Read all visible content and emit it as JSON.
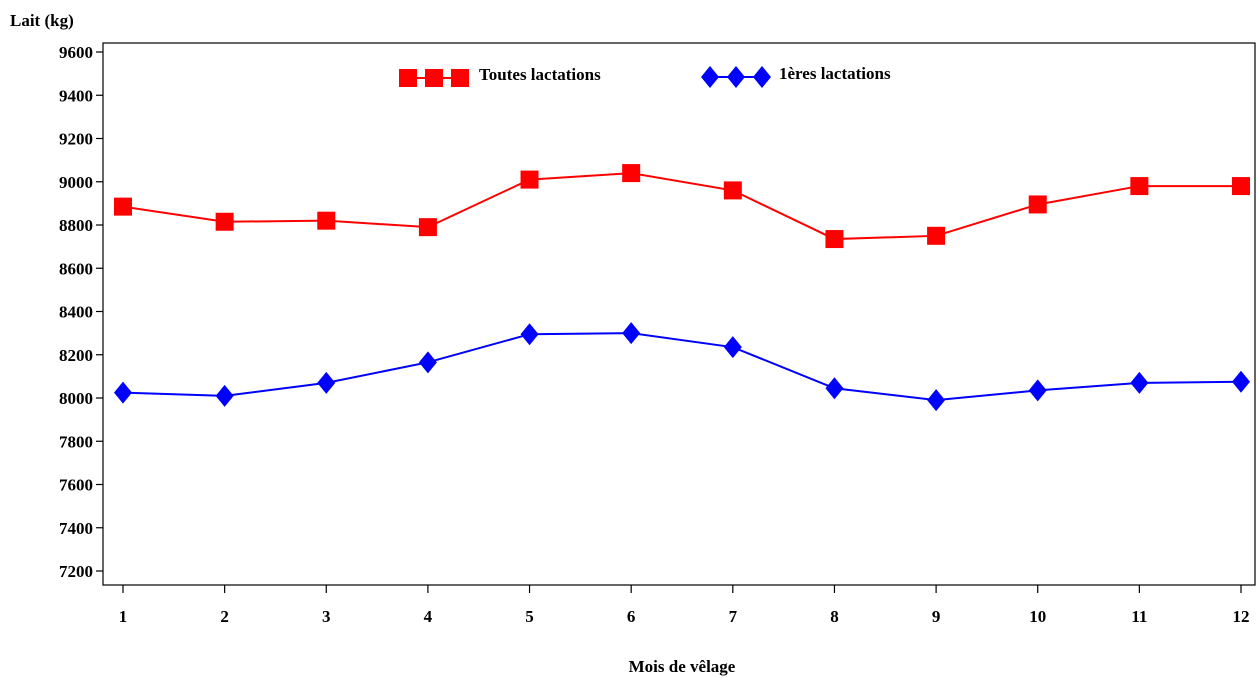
{
  "chart_data": {
    "type": "line",
    "ylabel": "Lait (kg)",
    "xlabel": "Mois de vêlage",
    "x": [
      1,
      2,
      3,
      4,
      5,
      6,
      7,
      8,
      9,
      10,
      11,
      12
    ],
    "ylim": [
      7100,
      9650
    ],
    "yticks": [
      7200,
      7400,
      7600,
      7800,
      8000,
      8200,
      8400,
      8600,
      8800,
      9000,
      9200,
      9400,
      9600
    ],
    "xticks": [
      "1",
      "2",
      "3",
      "4",
      "5",
      "6",
      "7",
      "8",
      "9",
      "10",
      "11",
      "12"
    ],
    "grid": false,
    "legend_placement": "top",
    "series": [
      {
        "name": "Toutes lactations",
        "color": "#ff0000",
        "marker": "square",
        "values": [
          8885,
          8815,
          8820,
          8790,
          9010,
          9040,
          8960,
          8735,
          8750,
          8895,
          8980,
          8980
        ]
      },
      {
        "name": "1ères lactations",
        "color": "#0000ff",
        "marker": "diamond",
        "values": [
          8025,
          8010,
          8070,
          8165,
          8295,
          8300,
          8235,
          8045,
          7990,
          8035,
          8070,
          8075
        ]
      }
    ]
  }
}
